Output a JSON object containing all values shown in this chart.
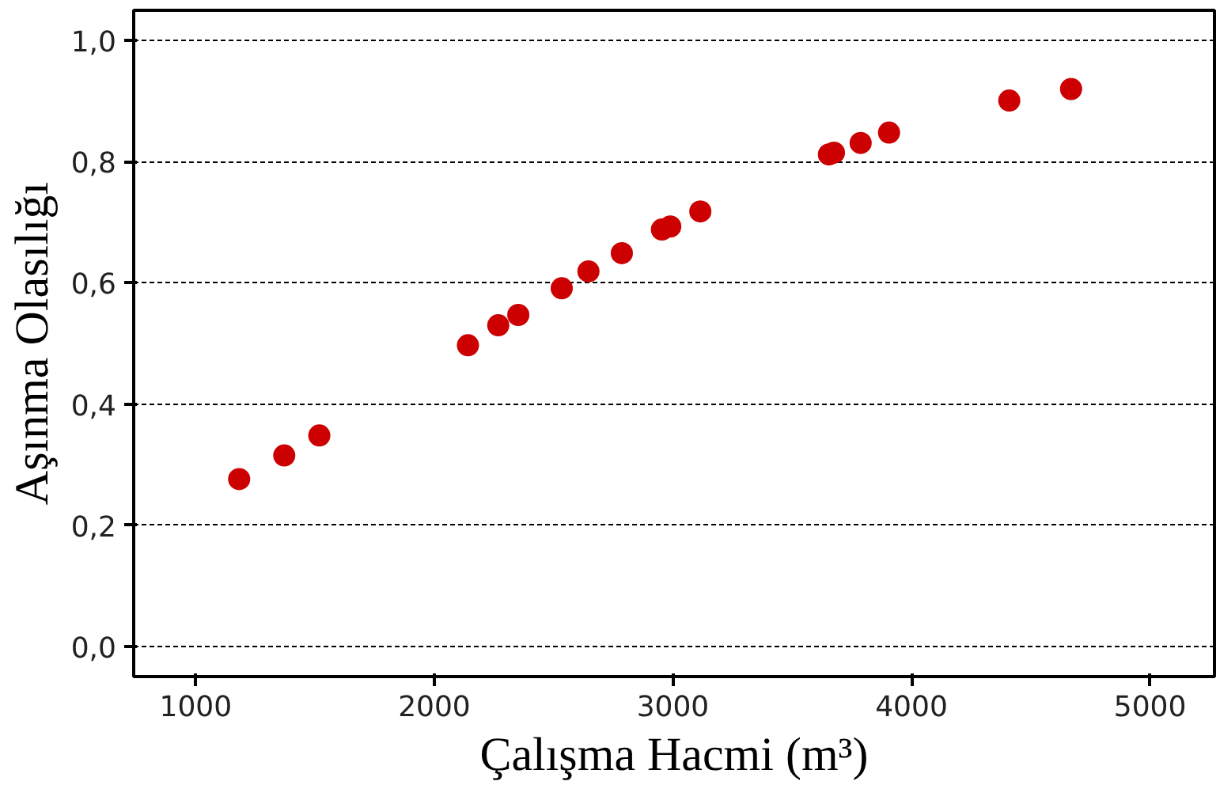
{
  "chart_data": {
    "type": "scatter",
    "xlabel": "Çalışma Hacmi (m³)",
    "ylabel": "Aşınma Olasılığı",
    "x": [
      1182,
      1371,
      1518,
      2141,
      2268,
      2352,
      2534,
      2646,
      2786,
      2954,
      2989,
      3115,
      3654,
      3675,
      3787,
      3906,
      4410,
      4669
    ],
    "series": [
      {
        "color": "#cc0000",
        "values": [
          0.276,
          0.315,
          0.348,
          0.497,
          0.53,
          0.547,
          0.591,
          0.619,
          0.649,
          0.688,
          0.693,
          0.718,
          0.812,
          0.815,
          0.831,
          0.848,
          0.901,
          0.92
        ]
      }
    ],
    "xlim": [
      740,
      5270
    ],
    "ylim": [
      -0.05,
      1.05
    ],
    "xticks": [
      1000,
      2000,
      3000,
      4000,
      5000
    ],
    "yticks": [
      {
        "value": 0,
        "label": "0,0"
      },
      {
        "value": 0.2,
        "label": "0,2"
      },
      {
        "value": 0.4,
        "label": "0,4"
      },
      {
        "value": 0.6,
        "label": "0,6"
      },
      {
        "value": 0.8,
        "label": "0,8"
      },
      {
        "value": 1.0,
        "label": "1,0"
      }
    ],
    "grid": "y",
    "marker": "circle"
  }
}
